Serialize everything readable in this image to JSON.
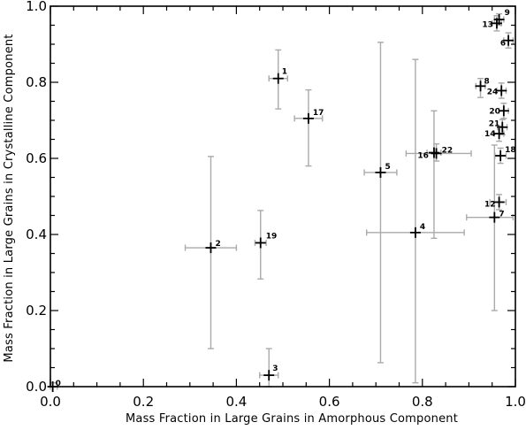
{
  "chart_data": {
    "type": "scatter",
    "title": "",
    "xlabel": "Mass Fraction in Large Grains in Amorphous Component",
    "ylabel": "Mass Fraction in Large Grains in Crystalline Component",
    "xlim": [
      0,
      1
    ],
    "ylim": [
      0,
      1
    ],
    "x_ticks": [
      "0.0",
      "0.2",
      "0.4",
      "0.6",
      "0.8",
      "1.0"
    ],
    "y_ticks": [
      "0.0",
      "0.2",
      "0.4",
      "0.6",
      "0.8",
      "1.0"
    ],
    "grid": false,
    "legend": "none",
    "error_bar_color": "#aaaaaa",
    "marker_color": "#000000",
    "points": [
      {
        "label": "0",
        "x": 0.005,
        "y": 0.0,
        "x_err": [
          0.005,
          0.01
        ],
        "y_err": [
          0.0,
          0.01
        ]
      },
      {
        "label": "1",
        "x": 0.49,
        "y": 0.81,
        "x_err": [
          0.02,
          0.02
        ],
        "y_err": [
          0.08,
          0.075
        ]
      },
      {
        "label": "2",
        "x": 0.345,
        "y": 0.365,
        "x_err": [
          0.055,
          0.055
        ],
        "y_err": [
          0.265,
          0.24
        ]
      },
      {
        "label": "3",
        "x": 0.47,
        "y": 0.03,
        "x_err": [
          0.02,
          0.02
        ],
        "y_err": [
          0.03,
          0.07
        ]
      },
      {
        "label": "4",
        "x": 0.785,
        "y": 0.405,
        "x_err": [
          0.105,
          0.105
        ],
        "y_err": [
          0.395,
          0.455
        ]
      },
      {
        "label": "5",
        "x": 0.71,
        "y": 0.563,
        "x_err": [
          0.035,
          0.035
        ],
        "y_err": [
          0.5,
          0.342
        ]
      },
      {
        "label": "6",
        "x": 0.985,
        "y": 0.91,
        "x_err": [
          0.01,
          0.01
        ],
        "y_err": [
          0.02,
          0.02
        ]
      },
      {
        "label": "7",
        "x": 0.955,
        "y": 0.445,
        "x_err": [
          0.06,
          0.04
        ],
        "y_err": [
          0.245,
          0.19
        ]
      },
      {
        "label": "8",
        "x": 0.925,
        "y": 0.79,
        "x_err": [
          0.01,
          0.01
        ],
        "y_err": [
          0.03,
          0.02
        ]
      },
      {
        "label": "9",
        "x": 0.965,
        "y": 0.965,
        "x_err": [
          0.01,
          0.01
        ],
        "y_err": [
          0.015,
          0.015
        ]
      },
      {
        "label": "12",
        "x": 0.965,
        "y": 0.485,
        "x_err": [
          0.02,
          0.015
        ],
        "y_err": [
          0.02,
          0.02
        ]
      },
      {
        "label": "13",
        "x": 0.96,
        "y": 0.955,
        "x_err": [
          0.01,
          0.01
        ],
        "y_err": [
          0.02,
          0.02
        ]
      },
      {
        "label": "14",
        "x": 0.965,
        "y": 0.665,
        "x_err": [
          0.01,
          0.01
        ],
        "y_err": [
          0.02,
          0.02
        ]
      },
      {
        "label": "16",
        "x": 0.825,
        "y": 0.615,
        "x_err": [
          0.015,
          0.015
        ],
        "y_err": [
          0.225,
          0.11
        ]
      },
      {
        "label": "17",
        "x": 0.555,
        "y": 0.705,
        "x_err": [
          0.03,
          0.03
        ],
        "y_err": [
          0.125,
          0.075
        ]
      },
      {
        "label": "18",
        "x": 0.968,
        "y": 0.607,
        "x_err": [
          0.012,
          0.012
        ],
        "y_err": [
          0.02,
          0.02
        ]
      },
      {
        "label": "19",
        "x": 0.452,
        "y": 0.378,
        "x_err": [
          0.012,
          0.012
        ],
        "y_err": [
          0.095,
          0.085
        ]
      },
      {
        "label": "20",
        "x": 0.975,
        "y": 0.725,
        "x_err": [
          0.01,
          0.01
        ],
        "y_err": [
          0.02,
          0.02
        ]
      },
      {
        "label": "21",
        "x": 0.972,
        "y": 0.682,
        "x_err": [
          0.01,
          0.01
        ],
        "y_err": [
          0.02,
          0.02
        ]
      },
      {
        "label": "22",
        "x": 0.83,
        "y": 0.613,
        "x_err": [
          0.065,
          0.075
        ],
        "y_err": [
          0.02,
          0.025
        ]
      },
      {
        "label": "24",
        "x": 0.97,
        "y": 0.778,
        "x_err": [
          0.01,
          0.01
        ],
        "y_err": [
          0.02,
          0.02
        ]
      }
    ]
  }
}
